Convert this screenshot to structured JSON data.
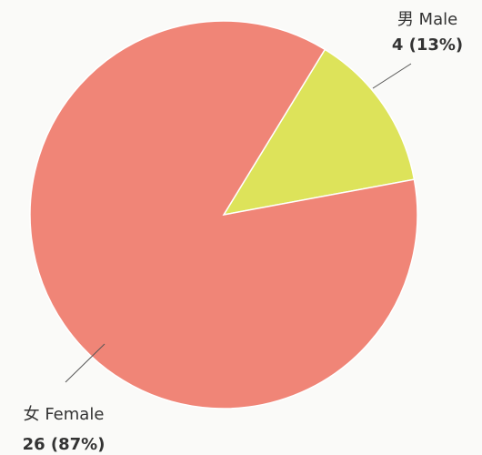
{
  "chart_data": {
    "type": "pie",
    "categories": [
      "男 Male",
      "女 Female"
    ],
    "values": [
      4,
      26
    ],
    "value_labels": [
      "4 (13%)",
      "26 (87%)"
    ],
    "colors": [
      "#dde35a",
      "#f08577"
    ]
  }
}
